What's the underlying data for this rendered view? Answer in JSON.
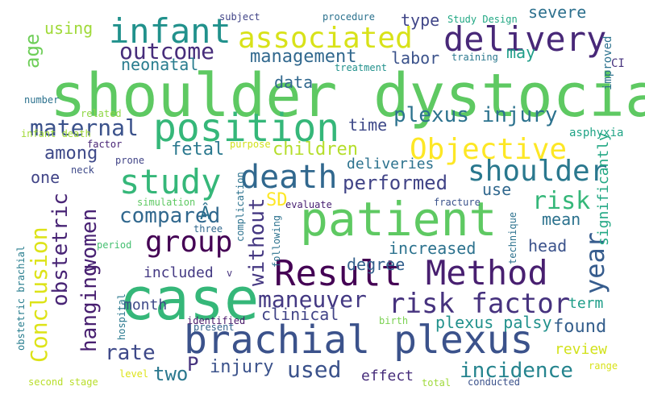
{
  "words": [
    {
      "text": "shoulder dystocia",
      "color": "#5ec962"
    },
    {
      "text": "case",
      "color": "#35b779"
    },
    {
      "text": "patient",
      "color": "#5ec962"
    },
    {
      "text": "brachial plexus",
      "color": "#3b528b"
    },
    {
      "text": "position",
      "color": "#35b779"
    },
    {
      "text": "Result",
      "color": "#440154"
    },
    {
      "text": "Method",
      "color": "#481f70"
    },
    {
      "text": "delivery",
      "color": "#482878"
    },
    {
      "text": "infant",
      "color": "#21918c"
    },
    {
      "text": "study",
      "color": "#35b779"
    },
    {
      "text": "death",
      "color": "#31688e"
    },
    {
      "text": "Objective",
      "color": "#fde725"
    },
    {
      "text": "associated",
      "color": "#d8e219"
    },
    {
      "text": "shoulder",
      "color": "#2a788e"
    },
    {
      "text": "group",
      "color": "#440154"
    },
    {
      "text": "risk factor",
      "color": "#46327e"
    },
    {
      "text": "outcome",
      "color": "#472d7b"
    },
    {
      "text": "maternal",
      "color": "#3b528b"
    },
    {
      "text": "compared",
      "color": "#31688e"
    },
    {
      "text": "maneuver",
      "color": "#443983"
    },
    {
      "text": "Conclusion",
      "color": "#dde318"
    },
    {
      "text": "plexus injury",
      "color": "#2c728e"
    },
    {
      "text": "risk",
      "color": "#35b779"
    },
    {
      "text": "year",
      "color": "#365c8d"
    },
    {
      "text": "hanging",
      "color": "#481f70"
    },
    {
      "text": "women",
      "color": "#482173"
    },
    {
      "text": "obstetric",
      "color": "#482475"
    },
    {
      "text": "rate",
      "color": "#3e4989"
    },
    {
      "text": "used",
      "color": "#3b528b"
    },
    {
      "text": "incidence",
      "color": "#25848e"
    },
    {
      "text": "performed",
      "color": "#414487"
    },
    {
      "text": "management",
      "color": "#31688e"
    },
    {
      "text": "age",
      "color": "#6ece58"
    },
    {
      "text": "among",
      "color": "#3e4989"
    },
    {
      "text": "children",
      "color": "#b5de2b"
    },
    {
      "text": "fetal",
      "color": "#2a788e"
    },
    {
      "text": "plexus palsy",
      "color": "#21918c"
    },
    {
      "text": "found",
      "color": "#355f8d"
    },
    {
      "text": "increased",
      "color": "#2c728e"
    },
    {
      "text": "head",
      "color": "#3b528b"
    },
    {
      "text": "mean",
      "color": "#2c728e"
    },
    {
      "text": "clinical",
      "color": "#414487"
    },
    {
      "text": "injury",
      "color": "#3b528b"
    },
    {
      "text": "two",
      "color": "#2a788e"
    },
    {
      "text": "P",
      "color": "#46337e"
    },
    {
      "text": "without",
      "color": "#453882"
    },
    {
      "text": "severe",
      "color": "#2d708e"
    },
    {
      "text": "data",
      "color": "#31688e"
    },
    {
      "text": "labor",
      "color": "#3b528b"
    },
    {
      "text": "may",
      "color": "#1f9e89"
    },
    {
      "text": "type",
      "color": "#404688"
    },
    {
      "text": "neonatal",
      "color": "#287c8e"
    },
    {
      "text": "using",
      "color": "#a0da39"
    },
    {
      "text": "time",
      "color": "#3e4989"
    },
    {
      "text": "deliveries",
      "color": "#2c728e"
    },
    {
      "text": "SD",
      "color": "#fde725"
    },
    {
      "text": "one",
      "color": "#414487"
    },
    {
      "text": "use",
      "color": "#31688e"
    },
    {
      "text": "degree",
      "color": "#34618d"
    },
    {
      "text": "included",
      "color": "#443983"
    },
    {
      "text": "month",
      "color": "#3e4989"
    },
    {
      "text": "review",
      "color": "#d2e21b"
    },
    {
      "text": "effect",
      "color": "#472d7b"
    },
    {
      "text": "term",
      "color": "#1f9e89"
    },
    {
      "text": "significantly",
      "color": "#22a884"
    },
    {
      "text": "Â",
      "color": "#2c728e"
    },
    {
      "text": "asphyxia",
      "color": "#20a486"
    },
    {
      "text": "improved",
      "color": "#2c728e"
    },
    {
      "text": "CI",
      "color": "#46327e"
    },
    {
      "text": "training",
      "color": "#2a788e"
    },
    {
      "text": "treatment",
      "color": "#21918c"
    },
    {
      "text": "Study Design",
      "color": "#22a884"
    },
    {
      "text": "procedure",
      "color": "#2c728e"
    },
    {
      "text": "subject",
      "color": "#414487"
    },
    {
      "text": "number",
      "color": "#2c728e"
    },
    {
      "text": "related",
      "color": "#8fd744"
    },
    {
      "text": "infant death",
      "color": "#a2da37"
    },
    {
      "text": "factor",
      "color": "#482475"
    },
    {
      "text": "purpose",
      "color": "#d0e11c"
    },
    {
      "text": "neck",
      "color": "#3e4989"
    },
    {
      "text": "prone",
      "color": "#414487"
    },
    {
      "text": "obstetric brachial",
      "color": "#287d8e"
    },
    {
      "text": "simulation",
      "color": "#5ec962"
    },
    {
      "text": "complication",
      "color": "#2c728e"
    },
    {
      "text": "three",
      "color": "#31688e"
    },
    {
      "text": "period",
      "color": "#44bf70"
    },
    {
      "text": "evaluate",
      "color": "#482173"
    },
    {
      "text": "fracture",
      "color": "#3b528b"
    },
    {
      "text": "following",
      "color": "#2c728e"
    },
    {
      "text": "technique",
      "color": "#2c728e"
    },
    {
      "text": "hospital",
      "color": "#2a788e"
    },
    {
      "text": "v",
      "color": "#46337e"
    },
    {
      "text": "identified",
      "color": "#48186a"
    },
    {
      "text": "present",
      "color": "#33638d"
    },
    {
      "text": "birth",
      "color": "#7ad151"
    },
    {
      "text": "level",
      "color": "#dde318"
    },
    {
      "text": "second stage",
      "color": "#b8de29"
    },
    {
      "text": "total",
      "color": "#9fda3a"
    },
    {
      "text": "conducted",
      "color": "#3b528b"
    },
    {
      "text": "range",
      "color": "#d8e219"
    }
  ]
}
